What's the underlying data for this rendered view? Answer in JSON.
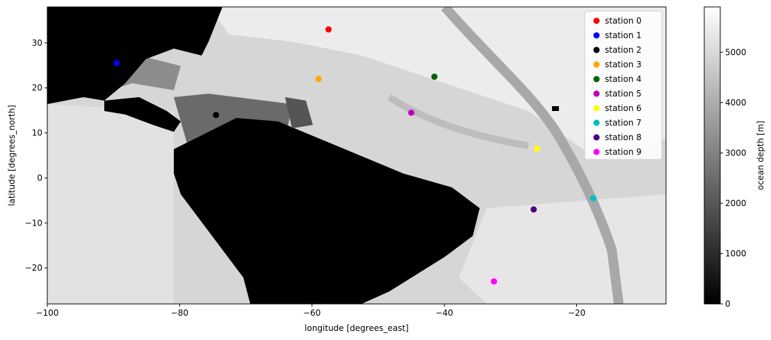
{
  "chart_data": {
    "type": "scatter",
    "title": "",
    "xlabel": "longitude [degrees_east]",
    "ylabel": "latitude [degrees_north]",
    "xlim": [
      -100,
      -6.5
    ],
    "ylim": [
      -28,
      38
    ],
    "xticks": [
      -100,
      -80,
      -60,
      -40,
      -20
    ],
    "yticks": [
      -20,
      -10,
      0,
      10,
      20,
      30
    ],
    "grid": false,
    "legend_position": "top-right",
    "background": "grayscale bathymetry map (ocean depth), land shown black",
    "colorbar": {
      "label": "ocean depth [m]",
      "range": [
        0,
        5900
      ],
      "ticks": [
        0,
        1000,
        2000,
        3000,
        4000,
        5000
      ],
      "colormap": "gray"
    },
    "series": [
      {
        "name": "station 0",
        "color": "#ff0000",
        "x": -57.5,
        "y": 33.0
      },
      {
        "name": "station 1",
        "color": "#0000ff",
        "x": -89.5,
        "y": 25.5
      },
      {
        "name": "station 2",
        "color": "#000000",
        "x": -74.5,
        "y": 14.0
      },
      {
        "name": "station 3",
        "color": "#ffa500",
        "x": -59.0,
        "y": 22.0
      },
      {
        "name": "station 4",
        "color": "#006400",
        "x": -41.5,
        "y": 22.5
      },
      {
        "name": "station 5",
        "color": "#bf00bf",
        "x": -45.0,
        "y": 14.5
      },
      {
        "name": "station 6",
        "color": "#ffff00",
        "x": -26.0,
        "y": 6.5
      },
      {
        "name": "station 7",
        "color": "#00bfbf",
        "x": -17.5,
        "y": -4.5
      },
      {
        "name": "station 8",
        "color": "#4b0082",
        "x": -26.5,
        "y": -7.0
      },
      {
        "name": "station 9",
        "color": "#ff00ff",
        "x": -32.5,
        "y": -23.0
      }
    ]
  }
}
